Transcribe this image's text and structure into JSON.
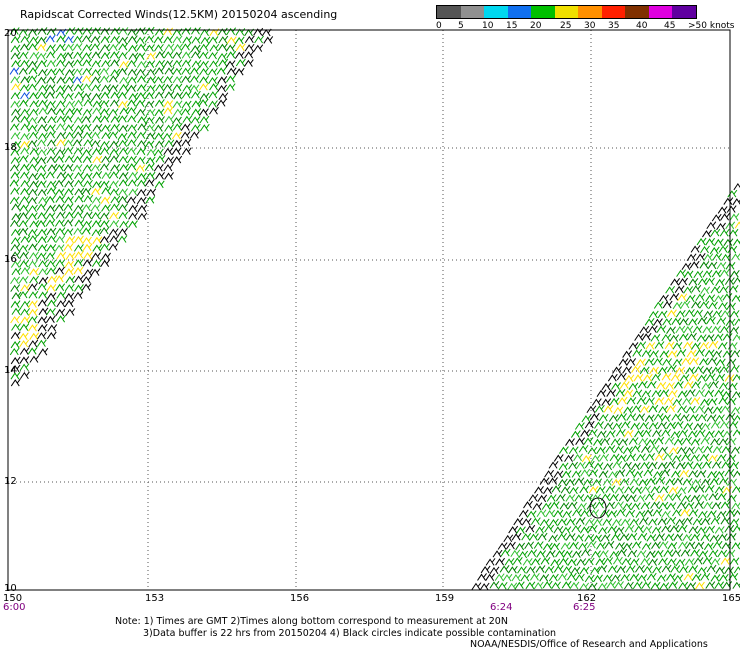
{
  "title": "Rapidscat Corrected Winds(12.5KM) 20150204 ascending",
  "legend": {
    "labels": [
      "0",
      "5",
      "10",
      "15",
      "20",
      "25",
      "30",
      "35",
      "40",
      "45",
      ">50 knots"
    ],
    "colors": [
      "#555555",
      "#909090",
      "#00d8f0",
      "#1070f0",
      "#00c000",
      "#f0e000",
      "#ff9000",
      "#ff2000",
      "#803000",
      "#e000e0",
      "#6000a0"
    ]
  },
  "map": {
    "lon_labels": [
      "150",
      "153",
      "156",
      "159",
      "162",
      "165"
    ],
    "lat_labels": [
      "20",
      "18",
      "16",
      "14",
      "12",
      "10"
    ],
    "time_labels": [
      "6:00",
      "6:24",
      "6:25"
    ],
    "time_color": "#800080"
  },
  "notes": {
    "line1": "Note: 1) Times are GMT 2)Times along bottom correspond to measurement at 20N",
    "line2": "3)Data buffer is 22 hrs from 20150204 4) Black circles indicate possible contamination",
    "line3": "NOAA/NESDIS/Office of Research and Applications"
  }
}
